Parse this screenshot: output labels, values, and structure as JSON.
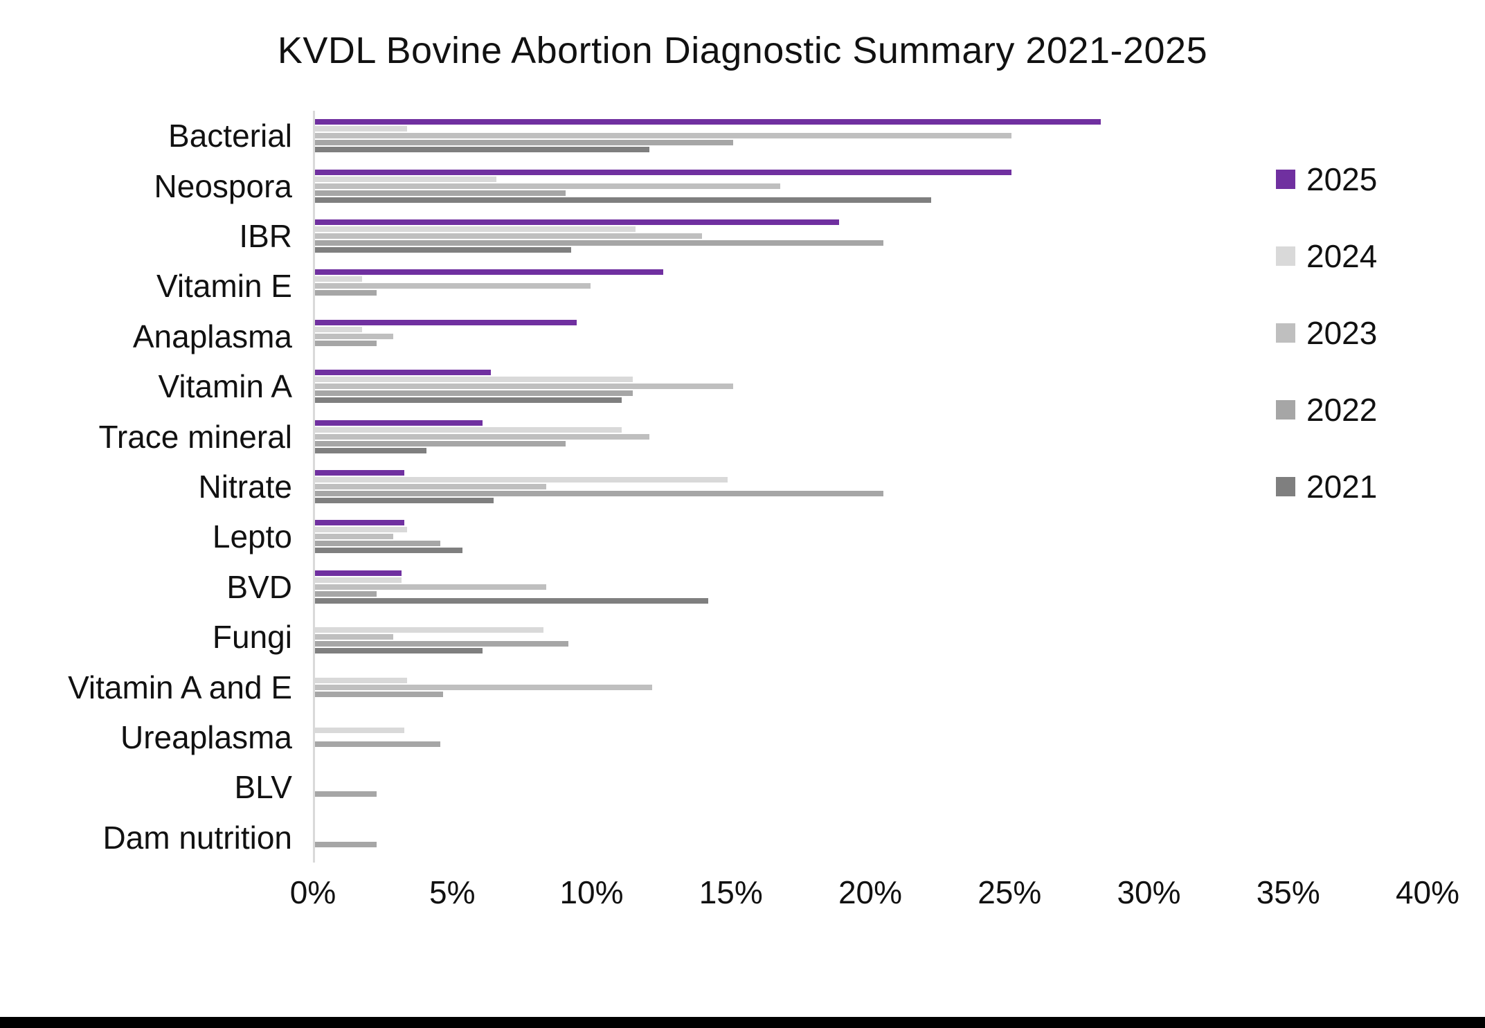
{
  "colors": {
    "axis_line": "#D9D9D9",
    "title_text": "#111111",
    "bottom_bar": "#000000"
  },
  "chart_data": {
    "type": "bar",
    "orientation": "horizontal",
    "title": "KVDL Bovine Abortion Diagnostic Summary 2021-2025",
    "xlabel": "",
    "ylabel": "",
    "xlim": [
      0,
      40
    ],
    "xtick_labels": [
      "0%",
      "5%",
      "10%",
      "15%",
      "20%",
      "25%",
      "30%",
      "35%",
      "40%"
    ],
    "xtick_values": [
      0,
      5,
      10,
      15,
      20,
      25,
      30,
      35,
      40
    ],
    "grid": false,
    "legend_position": "right",
    "value_unit": "%",
    "categories": [
      "Bacterial",
      "Neospora",
      "IBR",
      "Vitamin E",
      "Anaplasma",
      "Vitamin A",
      "Trace mineral",
      "Nitrate",
      "Lepto",
      "BVD",
      "Fungi",
      "Vitamin A and E",
      "Ureaplasma",
      "BLV",
      "Dam nutrition"
    ],
    "series": [
      {
        "name": "2025",
        "color": "#7030A0",
        "values": [
          28.2,
          25.0,
          18.8,
          12.5,
          9.4,
          6.3,
          6.0,
          3.2,
          3.2,
          3.1,
          0,
          0,
          0,
          0,
          0
        ]
      },
      {
        "name": "2024",
        "color": "#D9D9D9",
        "values": [
          3.3,
          6.5,
          11.5,
          1.7,
          1.7,
          11.4,
          11.0,
          14.8,
          3.3,
          3.1,
          8.2,
          3.3,
          3.2,
          0,
          0
        ]
      },
      {
        "name": "2023",
        "color": "#BFBFBF",
        "values": [
          25.0,
          16.7,
          13.9,
          9.9,
          2.8,
          15.0,
          12.0,
          8.3,
          2.8,
          8.3,
          2.8,
          12.1,
          0,
          0,
          0
        ]
      },
      {
        "name": "2022",
        "color": "#A6A6A6",
        "values": [
          15.0,
          9.0,
          20.4,
          2.2,
          2.2,
          11.4,
          9.0,
          20.4,
          4.5,
          2.2,
          9.1,
          4.6,
          4.5,
          2.2,
          2.2
        ]
      },
      {
        "name": "2021",
        "color": "#7F7F7F",
        "values": [
          12.0,
          22.1,
          9.2,
          0,
          0,
          11.0,
          4.0,
          6.4,
          5.3,
          14.1,
          6.0,
          0,
          0,
          0,
          0
        ]
      }
    ]
  }
}
